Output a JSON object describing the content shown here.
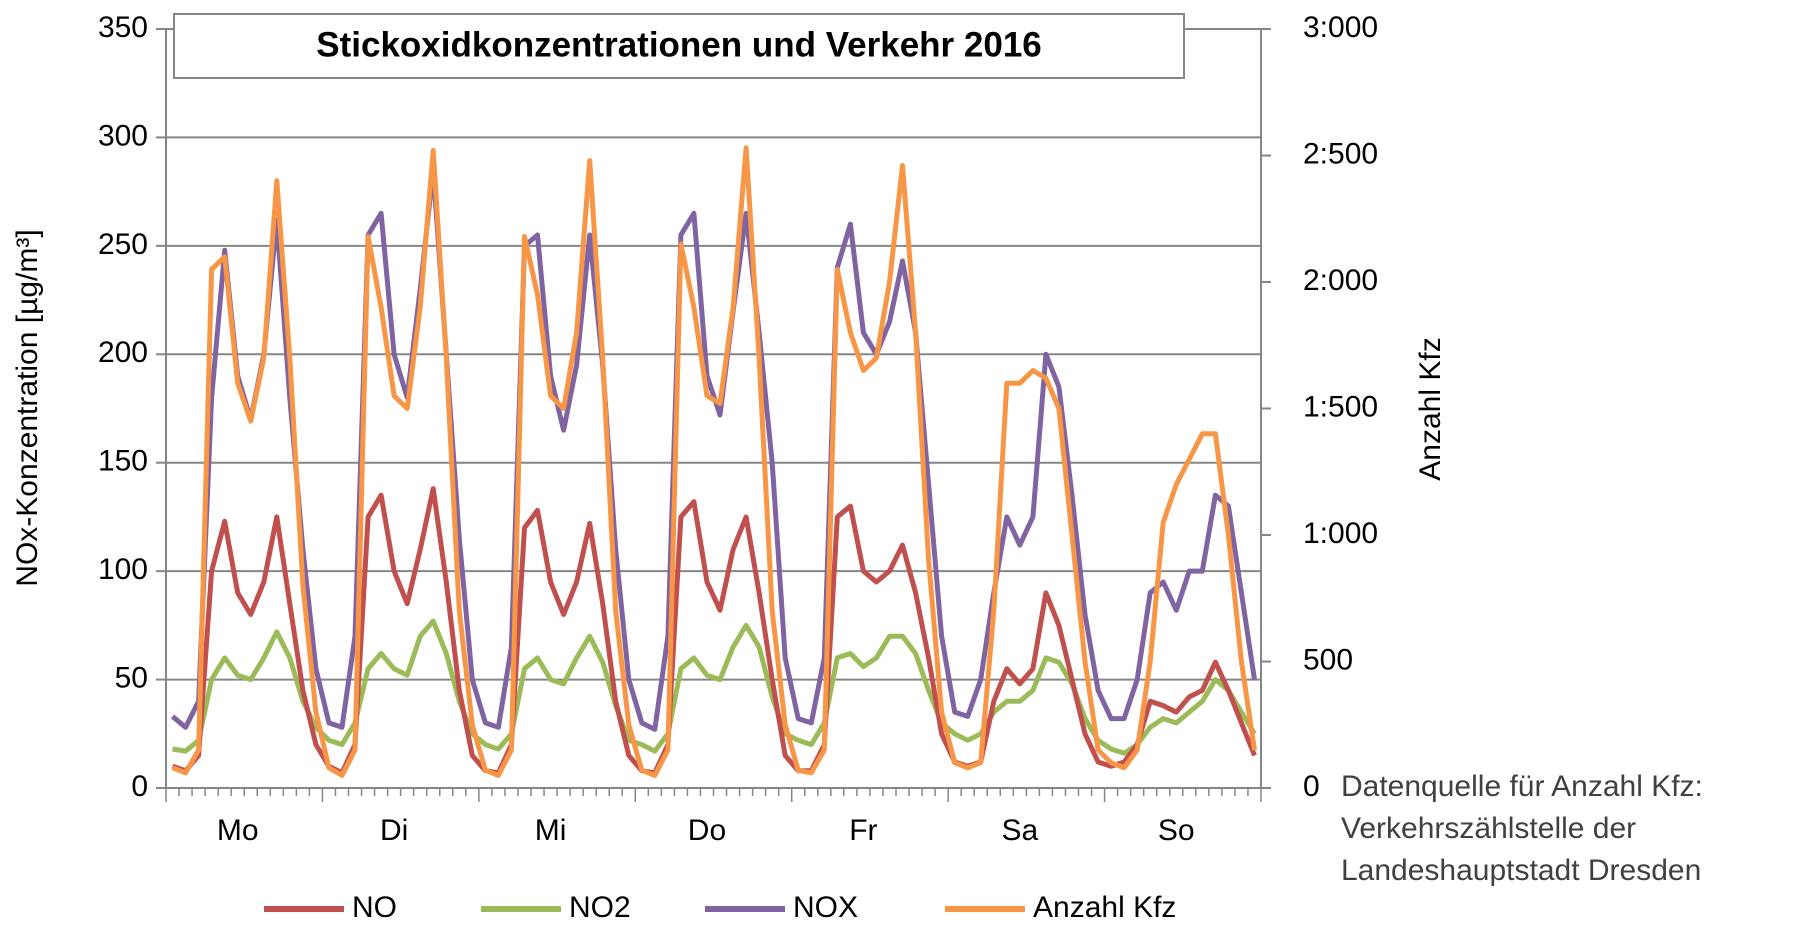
{
  "chart_data": {
    "type": "line",
    "title": "Stickoxidkonzentrationen und Verkehr 2016",
    "y_label": "NOx-Konzentration [µg/m³]",
    "y2_label": "Anzahl Kfz",
    "source": "Datenquelle für Anzahl Kfz: Verkehrszählstelle der Landeshauptstadt Dresden",
    "categories": [
      null,
      null,
      null,
      null,
      null,
      "Mo",
      null,
      null,
      null,
      null,
      null,
      null,
      null,
      null,
      null,
      null,
      null,
      "Di",
      null,
      null,
      null,
      null,
      null,
      null,
      null,
      null,
      null,
      null,
      null,
      "Mi",
      null,
      null,
      null,
      null,
      null,
      null,
      null,
      null,
      null,
      null,
      null,
      "Do",
      null,
      null,
      null,
      null,
      null,
      null,
      null,
      null,
      null,
      null,
      null,
      "Fr",
      null,
      null,
      null,
      null,
      null,
      null,
      null,
      null,
      null,
      null,
      null,
      "Sa",
      null,
      null,
      null,
      null,
      null,
      null,
      null,
      null,
      null,
      null,
      null,
      "So",
      null,
      null,
      null,
      null,
      null,
      null
    ],
    "ylim": [
      0,
      350
    ],
    "yticks": [
      0,
      50,
      100,
      150,
      200,
      250,
      300,
      350
    ],
    "y2lim": [
      0,
      3000
    ],
    "y2ticks": [
      0,
      500,
      {
        "value": 1000,
        "label": "1:000"
      },
      {
        "value": 1500,
        "label": "1:500"
      },
      {
        "value": 2000,
        "label": "2:000"
      },
      {
        "value": 2500,
        "label": "2:500"
      },
      {
        "value": 3000,
        "label": "3:000"
      }
    ],
    "grid": true,
    "legend": "bottom",
    "series": [
      {
        "name": "NO",
        "color": "#c0504d",
        "values": [
          10,
          8,
          15,
          100,
          123,
          90,
          80,
          95,
          125,
          85,
          45,
          20,
          10,
          7,
          20,
          125,
          135,
          100,
          85,
          110,
          138,
          95,
          45,
          15,
          8,
          7,
          20,
          120,
          128,
          95,
          80,
          95,
          122,
          85,
          40,
          15,
          8,
          7,
          20,
          125,
          132,
          95,
          82,
          110,
          125,
          90,
          50,
          15,
          8,
          8,
          20,
          125,
          130,
          100,
          95,
          100,
          112,
          90,
          60,
          25,
          12,
          10,
          12,
          40,
          55,
          48,
          55,
          90,
          75,
          50,
          25,
          12,
          10,
          12,
          20,
          40,
          38,
          35,
          42,
          45,
          58,
          45,
          30,
          15
        ]
      },
      {
        "name": "NO2",
        "color": "#9bbb59",
        "values": [
          18,
          17,
          22,
          50,
          60,
          52,
          50,
          60,
          72,
          60,
          40,
          28,
          22,
          20,
          30,
          55,
          62,
          55,
          52,
          70,
          77,
          62,
          40,
          25,
          20,
          18,
          25,
          55,
          60,
          50,
          48,
          60,
          70,
          58,
          38,
          22,
          20,
          17,
          25,
          55,
          60,
          52,
          50,
          65,
          75,
          65,
          42,
          25,
          22,
          20,
          30,
          60,
          62,
          56,
          60,
          70,
          70,
          62,
          45,
          30,
          25,
          22,
          25,
          35,
          40,
          40,
          45,
          60,
          58,
          48,
          32,
          22,
          18,
          16,
          20,
          28,
          32,
          30,
          35,
          40,
          50,
          45,
          35,
          25
        ]
      },
      {
        "name": "NOX",
        "color": "#8064a2",
        "values": [
          33,
          28,
          40,
          180,
          248,
          190,
          170,
          200,
          262,
          180,
          110,
          55,
          30,
          28,
          70,
          255,
          265,
          200,
          180,
          230,
          285,
          200,
          115,
          50,
          30,
          28,
          65,
          250,
          255,
          190,
          165,
          195,
          255,
          195,
          110,
          50,
          30,
          27,
          70,
          255,
          265,
          190,
          172,
          220,
          265,
          210,
          150,
          60,
          32,
          30,
          60,
          240,
          260,
          210,
          200,
          215,
          243,
          210,
          140,
          70,
          35,
          33,
          50,
          90,
          125,
          112,
          125,
          200,
          185,
          135,
          80,
          45,
          32,
          32,
          50,
          90,
          95,
          82,
          100,
          100,
          135,
          130,
          90,
          50
        ]
      },
      {
        "name": "Anzahl Kfz",
        "color": "#f79646",
        "axis": "y2",
        "values": [
          80,
          60,
          150,
          2050,
          2100,
          1600,
          1450,
          1700,
          2400,
          1700,
          800,
          300,
          80,
          50,
          150,
          2180,
          1900,
          1550,
          1500,
          1900,
          2520,
          1700,
          700,
          250,
          70,
          50,
          150,
          2180,
          1950,
          1550,
          1500,
          1800,
          2480,
          1700,
          700,
          250,
          70,
          50,
          150,
          2150,
          1900,
          1550,
          1520,
          1900,
          2530,
          1700,
          700,
          250,
          70,
          60,
          150,
          2050,
          1800,
          1650,
          1700,
          2000,
          2460,
          1800,
          900,
          300,
          100,
          80,
          100,
          700,
          1600,
          1600,
          1650,
          1620,
          1500,
          1000,
          500,
          150,
          100,
          80,
          150,
          500,
          1050,
          1200,
          1300,
          1400,
          1400,
          1000,
          500,
          150
        ]
      }
    ]
  }
}
